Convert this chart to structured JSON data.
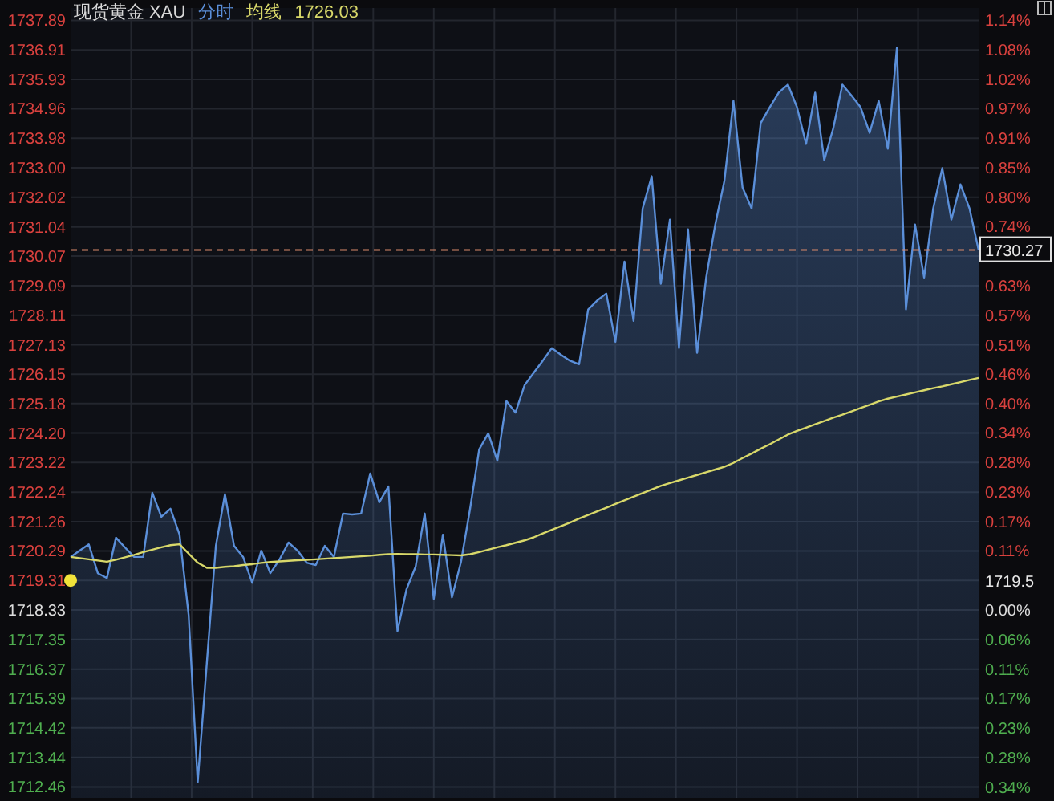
{
  "chart_data": {
    "type": "area",
    "title": "现货黄金 XAU",
    "annotations": [
      "1726.03",
      "1719.5"
    ],
    "grid": true,
    "tick_labels": "y",
    "categories": [
      null,
      null,
      null,
      null,
      null,
      null,
      null,
      null,
      null,
      null,
      null,
      null,
      null,
      null,
      null,
      null,
      null,
      null,
      null,
      null,
      null,
      null,
      null,
      null,
      null,
      null,
      null,
      null,
      null,
      null,
      null,
      null,
      null,
      null,
      null,
      null,
      null,
      null,
      null,
      null,
      null,
      null,
      null,
      null,
      null,
      null,
      null,
      null,
      null,
      null,
      null,
      null,
      null,
      null,
      null,
      null,
      null,
      null,
      null,
      null,
      null,
      null,
      null,
      null,
      null,
      null,
      null,
      null,
      null,
      null,
      null,
      null,
      null,
      null,
      null,
      null,
      null,
      null,
      null,
      null,
      null,
      null,
      null,
      null,
      null,
      null,
      null,
      null,
      null,
      null,
      null,
      null,
      null,
      null,
      null,
      null,
      null,
      null,
      null,
      null,
      null
    ],
    "ylim": [
      1712.1,
      1738.3
    ],
    "y2lim": [
      -0.3626,
      1.1622
    ],
    "yticks": [
      1737.89,
      1736.91,
      1735.93,
      1734.96,
      1733.98,
      {
        "value": 1733.0,
        "label": "1733.00"
      },
      1732.02,
      1731.04,
      1730.07,
      1729.09,
      1728.11,
      1727.13,
      1726.15,
      1725.18,
      {
        "value": 1724.2,
        "label": "1724.20"
      },
      1723.22,
      1722.24,
      1721.26,
      1720.29,
      1719.31,
      1718.33,
      1717.35,
      1716.37,
      1715.39,
      1714.42,
      1713.44,
      1712.46
    ],
    "y2ticks": [
      {
        "value": 1.139,
        "label": "1.14%"
      },
      {
        "value": 1.082,
        "label": "1.08%"
      },
      {
        "value": 1.025,
        "label": "1.02%"
      },
      {
        "value": 0.968,
        "label": "0.97%"
      },
      {
        "value": 0.911,
        "label": "0.91%"
      },
      {
        "value": 0.854,
        "label": "0.85%"
      },
      {
        "value": 0.797,
        "label": "0.80%"
      },
      {
        "value": 0.74,
        "label": "0.74%"
      },
      {
        "value": 0.683,
        "label": null
      },
      {
        "value": 0.626,
        "label": "0.63%"
      },
      {
        "value": 0.569,
        "label": "0.57%"
      },
      {
        "value": 0.512,
        "label": "0.51%"
      },
      {
        "value": 0.455,
        "label": "0.46%"
      },
      {
        "value": 0.398,
        "label": "0.40%"
      },
      {
        "value": 0.342,
        "label": "0.34%"
      },
      {
        "value": 0.2846,
        "label": "0.28%"
      },
      {
        "value": 0.228,
        "label": "0.23%"
      },
      {
        "value": 0.171,
        "label": "0.17%"
      },
      {
        "value": 0.114,
        "label": "0.11%"
      },
      {
        "value": 0.057,
        "label": null
      },
      {
        "value": 0,
        "label": "0.00%"
      },
      {
        "value": -0.057,
        "label": "0.06%"
      },
      {
        "value": -0.114,
        "label": "0.11%"
      },
      {
        "value": -0.171,
        "label": "0.17%"
      },
      {
        "value": -0.228,
        "label": "0.23%"
      },
      {
        "value": -0.2846,
        "label": "0.28%"
      },
      {
        "value": -0.342,
        "label": "0.34%"
      }
    ],
    "ref_lines": [
      {
        "axis": "y",
        "value": 1730.27,
        "label": "1730.27",
        "color": "#d98a6a",
        "line_style": "dashed"
      }
    ],
    "series": [
      {
        "name": "分时",
        "color": "#5b8fd9",
        "values": [
          1720.09,
          1720.3,
          1720.51,
          1719.55,
          1719.39,
          1720.73,
          1720.4,
          1720.09,
          1720.09,
          1722.22,
          1721.42,
          1721.69,
          1720.83,
          1718.17,
          1712.62,
          1716.57,
          1720.46,
          1722.17,
          1720.46,
          1720.09,
          1719.23,
          1720.3,
          1719.55,
          1720.0,
          1720.57,
          1720.3,
          1719.9,
          1719.82,
          1720.46,
          1720.09,
          1721.53,
          1721.5,
          1721.53,
          1722.86,
          1721.9,
          1722.43,
          1717.63,
          1719.02,
          1719.77,
          1721.53,
          1718.7,
          1720.83,
          1718.75,
          1719.93,
          1721.69,
          1723.66,
          1724.19,
          1723.28,
          1725.26,
          1724.88,
          1725.79,
          1726.2,
          1726.6,
          1727.02,
          1726.8,
          1726.6,
          1726.48,
          1728.3,
          1728.6,
          1728.83,
          1727.23,
          1729.89,
          1727.92,
          1731.65,
          1732.72,
          1729.15,
          1731.28,
          1727.02,
          1730.96,
          1726.86,
          1729.36,
          1731.12,
          1732.56,
          1735.22,
          1732.35,
          1731.65,
          1734.48,
          1735.01,
          1735.5,
          1735.76,
          1735.01,
          1733.79,
          1735.49,
          1733.25,
          1734.32,
          1735.76,
          1735.4,
          1735.01,
          1734.16,
          1735.22,
          1733.63,
          1736.98,
          1728.3,
          1731.12,
          1729.36,
          1731.65,
          1732.99,
          1731.28,
          1732.45,
          1731.65,
          1730.27
        ]
      },
      {
        "name": "均线",
        "type": "line",
        "color": "#d8d86a",
        "values": [
          1720.09,
          1720.05,
          1720.01,
          1719.97,
          1719.93,
          1720.0,
          1720.08,
          1720.16,
          1720.25,
          1720.33,
          1720.41,
          1720.48,
          1720.51,
          1720.2,
          1719.9,
          1719.73,
          1719.73,
          1719.76,
          1719.78,
          1719.82,
          1719.85,
          1719.89,
          1719.92,
          1719.94,
          1719.96,
          1719.98,
          1719.99,
          1720.01,
          1720.03,
          1720.05,
          1720.07,
          1720.09,
          1720.11,
          1720.13,
          1720.16,
          1720.18,
          1720.19,
          1720.18,
          1720.18,
          1720.17,
          1720.17,
          1720.16,
          1720.15,
          1720.14,
          1720.18,
          1720.25,
          1720.33,
          1720.41,
          1720.48,
          1720.56,
          1720.64,
          1720.74,
          1720.87,
          1720.99,
          1721.11,
          1721.23,
          1721.36,
          1721.48,
          1721.6,
          1721.72,
          1721.85,
          1721.97,
          1722.09,
          1722.21,
          1722.33,
          1722.45,
          1722.54,
          1722.63,
          1722.72,
          1722.81,
          1722.9,
          1722.99,
          1723.08,
          1723.21,
          1723.37,
          1723.52,
          1723.68,
          1723.83,
          1723.99,
          1724.15,
          1724.27,
          1724.38,
          1724.49,
          1724.6,
          1724.71,
          1724.81,
          1724.92,
          1725.03,
          1725.14,
          1725.25,
          1725.34,
          1725.41,
          1725.48,
          1725.55,
          1725.62,
          1725.69,
          1725.75,
          1725.82,
          1725.89,
          1725.96,
          1726.03
        ]
      },
      {
        "type": "scatter",
        "color": "#f2e33a",
        "marker": "circle",
        "values": [
          1719.31,
          null,
          null,
          null,
          null,
          null,
          null,
          null,
          null,
          null,
          null,
          null,
          null,
          null,
          null,
          null,
          null,
          null,
          null,
          null,
          null,
          null,
          null,
          null,
          null,
          null,
          null,
          null,
          null,
          null,
          null,
          null,
          null,
          null,
          null,
          null,
          null,
          null,
          null,
          null,
          null,
          null,
          null,
          null,
          null,
          null,
          null,
          null,
          null,
          null,
          null,
          null,
          null,
          null,
          null,
          null,
          null,
          null,
          null,
          null,
          null,
          null,
          null,
          null,
          null,
          null,
          null,
          null,
          null,
          null,
          null,
          null,
          null,
          null,
          null,
          null,
          null,
          null,
          null,
          null,
          null,
          null,
          null,
          null,
          null,
          null,
          null,
          null,
          null,
          null,
          null,
          null,
          null,
          null,
          null,
          null,
          null,
          null,
          null,
          null,
          null
        ]
      }
    ]
  }
}
